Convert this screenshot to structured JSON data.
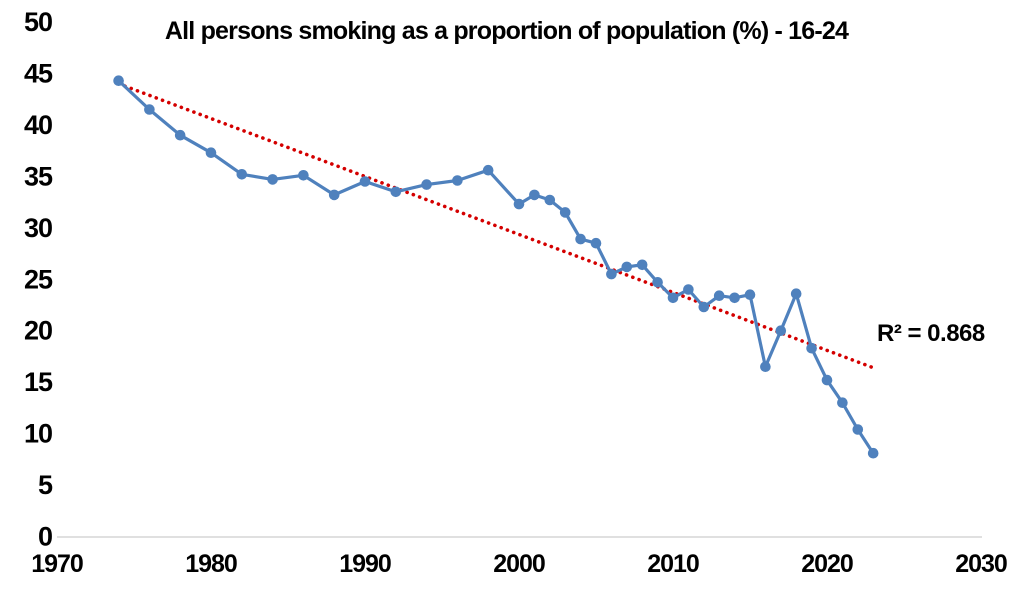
{
  "chart_data": {
    "type": "line",
    "title": "All persons smoking as a proportion of population (%) - 16-24",
    "xlabel": "",
    "ylabel": "",
    "xlim": [
      1970,
      2030
    ],
    "ylim": [
      0,
      50
    ],
    "x_ticks": [
      1970,
      1980,
      1990,
      2000,
      2010,
      2020,
      2030
    ],
    "y_ticks": [
      0,
      5,
      10,
      15,
      20,
      25,
      30,
      35,
      40,
      45,
      50
    ],
    "grid": false,
    "legend": "none",
    "series": [
      {
        "name": "All persons smoking, ages 16-24 (%)",
        "x": [
          1974,
          1976,
          1978,
          1980,
          1982,
          1984,
          1986,
          1988,
          1990,
          1992,
          1994,
          1996,
          1998,
          2000,
          2001,
          2002,
          2003,
          2004,
          2005,
          2006,
          2007,
          2008,
          2009,
          2010,
          2011,
          2012,
          2013,
          2014,
          2015,
          2016,
          2017,
          2018,
          2019,
          2020,
          2021,
          2022,
          2023
        ],
        "values": [
          44.3,
          41.5,
          39.0,
          37.3,
          35.2,
          34.7,
          35.1,
          33.2,
          34.5,
          33.5,
          34.2,
          34.6,
          35.6,
          32.3,
          33.2,
          32.7,
          31.5,
          28.9,
          28.5,
          25.5,
          26.2,
          26.4,
          24.7,
          23.2,
          24.0,
          22.3,
          23.4,
          23.2,
          23.5,
          16.5,
          20.0,
          23.6,
          18.3,
          15.2,
          13.0,
          10.4,
          8.1
        ]
      }
    ],
    "trendline": {
      "type": "linear",
      "style": "dotted",
      "start": {
        "x": 1974,
        "y": 44.0
      },
      "end": {
        "x": 2023,
        "y": 16.4
      },
      "r_squared": 0.868,
      "r_squared_label": "R² = 0.868"
    },
    "colors": {
      "series_line": "#4F81BD",
      "marker": "#4F81BD",
      "trendline": "#D40000",
      "axis_line": "#D6D6D6",
      "text": "#000000",
      "background": "#FFFFFF"
    }
  }
}
